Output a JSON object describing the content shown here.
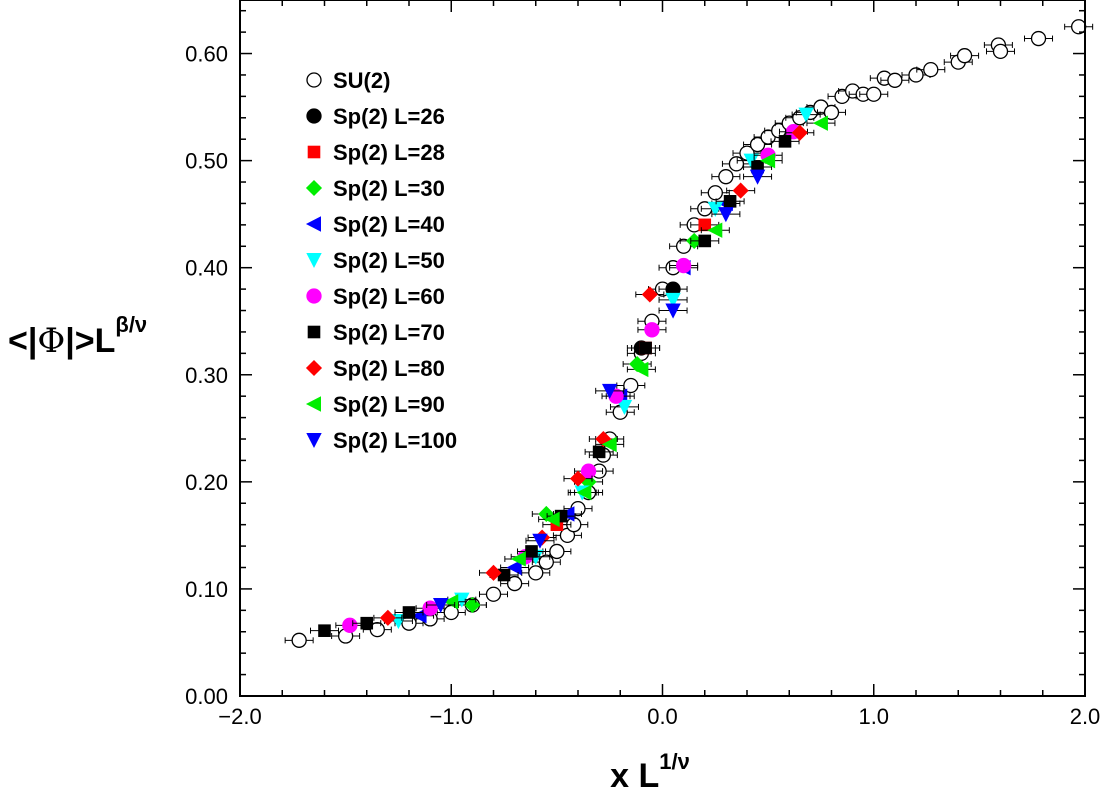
{
  "chart_data": {
    "type": "scatter",
    "xlabel": {
      "main": "x L",
      "sup": "1/ν"
    },
    "ylabel": {
      "pre": "<|",
      "sym": "Φ",
      "post": "|>L",
      "sup": "β/ν"
    },
    "xlim": [
      -2.0,
      2.0
    ],
    "ylim": [
      0.0,
      0.65
    ],
    "xticks": [
      "−2.0",
      "−1.0",
      "0.0",
      "1.0",
      "2.0"
    ],
    "yticks": [
      "0.00",
      "0.10",
      "0.20",
      "0.30",
      "0.40",
      "0.50",
      "0.60"
    ],
    "grid": false,
    "legend_position": "top-left",
    "series": [
      {
        "name": "SU(2)",
        "marker": "circle-open",
        "color": "#000000",
        "points": [
          [
            -1.72,
            0.052
          ],
          [
            -1.5,
            0.056
          ],
          [
            -1.35,
            0.062
          ],
          [
            -1.2,
            0.068
          ],
          [
            -1.1,
            0.072
          ],
          [
            -1.0,
            0.078
          ],
          [
            -0.9,
            0.085
          ],
          [
            -0.8,
            0.095
          ],
          [
            -0.7,
            0.105
          ],
          [
            -0.6,
            0.115
          ],
          [
            -0.55,
            0.125
          ],
          [
            -0.5,
            0.135
          ],
          [
            -0.45,
            0.15
          ],
          [
            -0.42,
            0.16
          ],
          [
            -0.4,
            0.175
          ],
          [
            -0.35,
            0.19
          ],
          [
            -0.3,
            0.21
          ],
          [
            -0.28,
            0.225
          ],
          [
            -0.25,
            0.24
          ],
          [
            -0.2,
            0.265
          ],
          [
            -0.15,
            0.29
          ],
          [
            -0.1,
            0.32
          ],
          [
            -0.05,
            0.35
          ],
          [
            0.0,
            0.38
          ],
          [
            0.05,
            0.4
          ],
          [
            0.1,
            0.42
          ],
          [
            0.15,
            0.44
          ],
          [
            0.2,
            0.455
          ],
          [
            0.25,
            0.47
          ],
          [
            0.3,
            0.485
          ],
          [
            0.35,
            0.497
          ],
          [
            0.4,
            0.507
          ],
          [
            0.45,
            0.515
          ],
          [
            0.5,
            0.522
          ],
          [
            0.55,
            0.528
          ],
          [
            0.6,
            0.535
          ],
          [
            0.65,
            0.54
          ],
          [
            0.7,
            0.545
          ],
          [
            0.75,
            0.55
          ],
          [
            0.8,
            0.545
          ],
          [
            0.85,
            0.56
          ],
          [
            0.9,
            0.565
          ],
          [
            0.95,
            0.562
          ],
          [
            1.0,
            0.562
          ],
          [
            1.05,
            0.577
          ],
          [
            1.1,
            0.575
          ],
          [
            1.2,
            0.58
          ],
          [
            1.27,
            0.585
          ],
          [
            1.4,
            0.592
          ],
          [
            1.43,
            0.598
          ],
          [
            1.59,
            0.608
          ],
          [
            1.6,
            0.602
          ],
          [
            1.78,
            0.614
          ],
          [
            1.97,
            0.625
          ]
        ]
      },
      {
        "name": "Sp(2) L=26",
        "marker": "circle",
        "color": "#000000",
        "points": [
          [
            -0.1,
            0.325
          ],
          [
            0.05,
            0.38
          ]
        ]
      },
      {
        "name": "Sp(2) L=28",
        "marker": "square",
        "color": "#ff0000",
        "points": [
          [
            -0.5,
            0.16
          ],
          [
            -0.08,
            0.325
          ],
          [
            0.2,
            0.44
          ]
        ]
      },
      {
        "name": "Sp(2) L=30",
        "marker": "diamond",
        "color": "#00ee00",
        "points": [
          [
            -0.9,
            0.085
          ],
          [
            -0.55,
            0.17
          ],
          [
            -0.35,
            0.2
          ],
          [
            -0.12,
            0.31
          ],
          [
            0.15,
            0.425
          ]
        ]
      },
      {
        "name": "Sp(2) L=40",
        "marker": "triangle-left",
        "color": "#0000ff",
        "points": [
          [
            -1.15,
            0.075
          ],
          [
            -0.7,
            0.12
          ],
          [
            -0.45,
            0.17
          ],
          [
            -0.2,
            0.28
          ],
          [
            0.1,
            0.4
          ],
          [
            0.3,
            0.46
          ]
        ]
      },
      {
        "name": "Sp(2) L=50",
        "marker": "triangle-down",
        "color": "#00ffff",
        "points": [
          [
            -1.25,
            0.07
          ],
          [
            -0.95,
            0.09
          ],
          [
            -0.6,
            0.13
          ],
          [
            -0.38,
            0.19
          ],
          [
            -0.18,
            0.27
          ],
          [
            0.05,
            0.37
          ],
          [
            0.25,
            0.455
          ],
          [
            0.42,
            0.5
          ],
          [
            0.68,
            0.543
          ]
        ]
      },
      {
        "name": "Sp(2) L=60",
        "marker": "circle",
        "color": "#ff00ff",
        "points": [
          [
            -1.48,
            0.066
          ],
          [
            -1.1,
            0.082
          ],
          [
            -0.65,
            0.13
          ],
          [
            -0.35,
            0.21
          ],
          [
            -0.22,
            0.28
          ],
          [
            -0.05,
            0.342
          ],
          [
            0.1,
            0.402
          ],
          [
            0.5,
            0.505
          ],
          [
            0.62,
            0.527
          ]
        ]
      },
      {
        "name": "Sp(2) L=70",
        "marker": "square",
        "color": "#000000",
        "points": [
          [
            -1.6,
            0.061
          ],
          [
            -1.4,
            0.068
          ],
          [
            -1.2,
            0.078
          ],
          [
            -0.75,
            0.113
          ],
          [
            -0.62,
            0.135
          ],
          [
            -0.48,
            0.168
          ],
          [
            -0.3,
            0.228
          ],
          [
            -0.08,
            0.325
          ],
          [
            0.2,
            0.425
          ],
          [
            0.32,
            0.462
          ],
          [
            0.45,
            0.494
          ],
          [
            0.58,
            0.518
          ]
        ]
      },
      {
        "name": "Sp(2) L=80",
        "marker": "diamond",
        "color": "#ff0000",
        "points": [
          [
            -1.3,
            0.073
          ],
          [
            -0.8,
            0.115
          ],
          [
            -0.57,
            0.148
          ],
          [
            -0.4,
            0.203
          ],
          [
            -0.28,
            0.24
          ],
          [
            -0.06,
            0.375
          ],
          [
            0.37,
            0.472
          ],
          [
            0.65,
            0.526
          ]
        ]
      },
      {
        "name": "Sp(2) L=90",
        "marker": "triangle-left",
        "color": "#00ee00",
        "points": [
          [
            -1.0,
            0.088
          ],
          [
            -0.68,
            0.128
          ],
          [
            -0.52,
            0.165
          ],
          [
            -0.37,
            0.19
          ],
          [
            -0.25,
            0.235
          ],
          [
            -0.1,
            0.305
          ],
          [
            0.25,
            0.435
          ],
          [
            0.5,
            0.5
          ],
          [
            0.75,
            0.535
          ]
        ]
      },
      {
        "name": "Sp(2) L=100",
        "marker": "triangle-down",
        "color": "#0000ff",
        "points": [
          [
            -1.05,
            0.085
          ],
          [
            -0.58,
            0.145
          ],
          [
            -0.25,
            0.285
          ],
          [
            0.05,
            0.36
          ],
          [
            0.3,
            0.45
          ],
          [
            0.45,
            0.485
          ]
        ]
      }
    ]
  }
}
